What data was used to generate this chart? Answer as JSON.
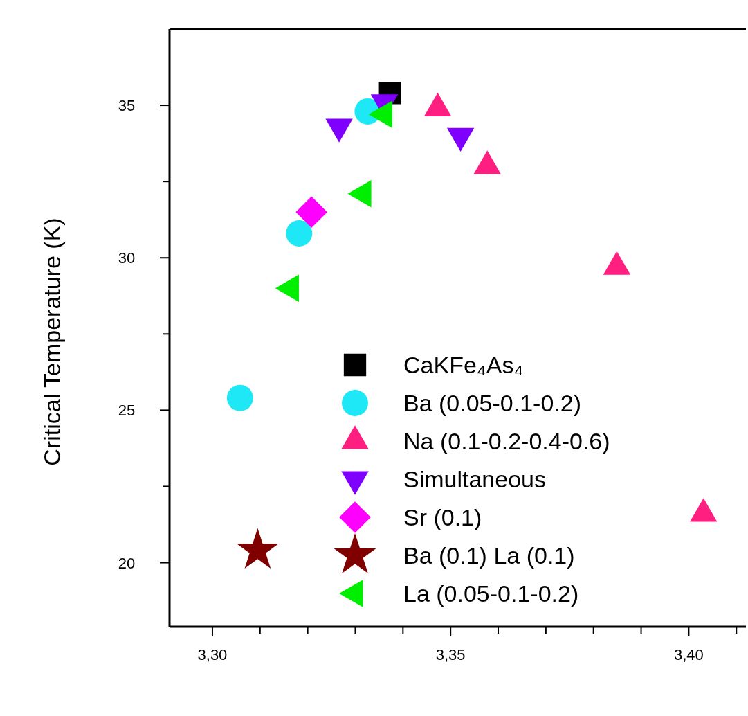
{
  "chart_data": {
    "type": "scatter",
    "ylabel": "Critical Temperature (K)",
    "xlim": [
      3.291,
      3.412
    ],
    "ylim": [
      17.9,
      37.5
    ],
    "xticks": [
      {
        "value": 3.3,
        "label": "3,30"
      },
      {
        "value": 3.31,
        "label": null
      },
      {
        "value": 3.32,
        "label": null
      },
      {
        "value": 3.33,
        "label": null
      },
      {
        "value": 3.34,
        "label": null
      },
      {
        "value": 3.35,
        "label": "3,35"
      },
      {
        "value": 3.36,
        "label": null
      },
      {
        "value": 3.37,
        "label": null
      },
      {
        "value": 3.38,
        "label": null
      },
      {
        "value": 3.39,
        "label": null
      },
      {
        "value": 3.4,
        "label": "3,40"
      },
      {
        "value": 3.41,
        "label": null
      }
    ],
    "yticks": [
      20,
      {
        "value": 22.5,
        "label": null
      },
      25,
      {
        "value": 27.5,
        "label": null
      },
      30,
      {
        "value": 32.5,
        "label": null
      },
      35
    ],
    "legend": "bottom right",
    "grid": false,
    "series": [
      {
        "name": "CaKFe₄As₄",
        "color": "#000000",
        "marker": "square",
        "x": [
          3.3373
        ],
        "values": [
          35.4
        ]
      },
      {
        "name": "Ba (0.05-0.1-0.2)",
        "color": "#1ee8f5",
        "marker": "circle",
        "x": [
          3.3058,
          3.3182,
          3.3326
        ],
        "values": [
          25.4,
          30.8,
          34.8
        ]
      },
      {
        "name": "Na (0.1-0.2-0.4-0.6)",
        "color": "#ff1f80",
        "marker": "triangle",
        "x": [
          3.3473,
          3.3577,
          3.3849,
          3.4031
        ],
        "values": [
          34.9,
          33.0,
          29.7,
          21.6
        ]
      },
      {
        "name": "Simultaneous",
        "color": "#7f00ff",
        "marker": "triangle-down",
        "x": [
          3.3266,
          3.3361,
          3.3521
        ],
        "values": [
          34.3,
          35.1,
          34.0
        ]
      },
      {
        "name": "Sr (0.1)",
        "color": "#ff00ff",
        "marker": "diamond",
        "x": [
          3.3208
        ],
        "values": [
          31.5
        ]
      },
      {
        "name": "Ba (0.1) La (0.1)",
        "color": "#800000",
        "marker": "star",
        "x": [
          3.3095
        ],
        "values": [
          20.4
        ]
      },
      {
        "name": "La (0.05-0.1-0.2)",
        "color": "#00ee00",
        "marker": "triangle-left",
        "x": [
          3.3165,
          3.3317,
          3.3361
        ],
        "values": [
          29.0,
          32.1,
          34.7
        ]
      }
    ]
  }
}
